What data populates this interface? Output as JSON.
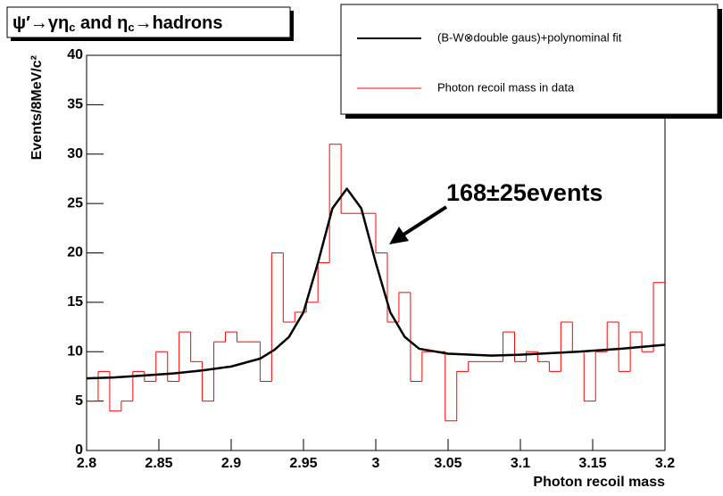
{
  "chart_data": {
    "type": "histogram",
    "title_parts": [
      "ψ′→γη",
      "c",
      " and η",
      "c",
      "→hadrons"
    ],
    "xlabel": "Photon recoil mass",
    "ylabel": "Events/8MeV/c²",
    "bins": [
      2.8,
      2.808,
      2.816,
      2.824,
      2.832,
      2.84,
      2.848,
      2.856,
      2.864,
      2.872,
      2.88,
      2.888,
      2.896,
      2.904,
      2.912,
      2.92,
      2.928,
      2.936,
      2.944,
      2.952,
      2.96,
      2.968,
      2.976,
      2.984,
      2.992,
      3.0,
      3.008,
      3.016,
      3.024,
      3.032,
      3.04,
      3.048,
      3.056,
      3.064,
      3.072,
      3.08,
      3.088,
      3.096,
      3.104,
      3.112,
      3.12,
      3.128,
      3.136,
      3.144,
      3.152,
      3.16,
      3.168,
      3.176,
      3.184,
      3.192,
      3.2
    ],
    "counts": [
      5,
      8,
      4,
      5,
      8,
      7,
      10,
      7,
      12,
      9,
      5,
      11,
      12,
      11,
      11,
      7,
      20,
      13,
      14,
      15,
      19,
      31,
      24,
      24,
      24,
      20,
      13,
      16,
      7,
      10,
      10,
      3,
      8,
      9,
      9,
      9,
      12,
      9,
      10,
      9,
      8,
      13,
      10,
      5,
      10,
      13,
      8,
      12,
      10,
      17
    ],
    "hist_name": "Photon recoil mass in data",
    "hist_color": "#ff0000",
    "fit": {
      "name": "(B-W⊗double gaus)+polynominal fit",
      "color": "#000000",
      "x": [
        2.8,
        2.82,
        2.84,
        2.86,
        2.88,
        2.9,
        2.92,
        2.93,
        2.94,
        2.95,
        2.96,
        2.97,
        2.98,
        2.99,
        3.0,
        3.01,
        3.02,
        3.03,
        3.05,
        3.08,
        3.1,
        3.14,
        3.17,
        3.2
      ],
      "values": [
        7.3,
        7.4,
        7.6,
        7.8,
        8.1,
        8.5,
        9.3,
        10.2,
        11.5,
        14,
        19,
        24.5,
        26.5,
        24.5,
        19,
        14,
        11.5,
        10.3,
        9.8,
        9.6,
        9.7,
        10.0,
        10.3,
        10.7
      ]
    },
    "annotation": "168±25events",
    "xlim": [
      2.8,
      3.2
    ],
    "ylim": [
      0,
      40
    ],
    "xticks": [
      2.8,
      2.85,
      2.9,
      2.95,
      3,
      3.05,
      3.1,
      3.15,
      3.2
    ],
    "yticks": [
      0,
      5,
      10,
      15,
      20,
      25,
      30,
      35,
      40
    ]
  }
}
